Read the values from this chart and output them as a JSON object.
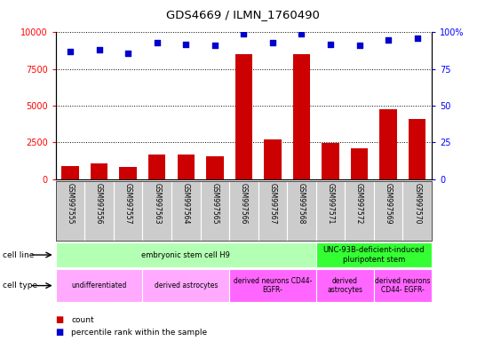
{
  "title": "GDS4669 / ILMN_1760490",
  "samples": [
    "GSM997555",
    "GSM997556",
    "GSM997557",
    "GSM997563",
    "GSM997564",
    "GSM997565",
    "GSM997566",
    "GSM997567",
    "GSM997568",
    "GSM997571",
    "GSM997572",
    "GSM997569",
    "GSM997570"
  ],
  "counts": [
    900,
    1050,
    800,
    1700,
    1700,
    1550,
    8500,
    2700,
    8500,
    2450,
    2100,
    4750,
    4100
  ],
  "percentiles": [
    87,
    88,
    86,
    93,
    92,
    91,
    99,
    93,
    99,
    92,
    91,
    95,
    96
  ],
  "bar_color": "#cc0000",
  "dot_color": "#0000cc",
  "ylim_left": [
    0,
    10000
  ],
  "ylim_right": [
    0,
    100
  ],
  "yticks_left": [
    0,
    2500,
    5000,
    7500,
    10000
  ],
  "yticks_right": [
    0,
    25,
    50,
    75,
    100
  ],
  "cell_line_groups": [
    {
      "label": "embryonic stem cell H9",
      "start": 0,
      "end": 9,
      "color": "#b3ffb3"
    },
    {
      "label": "UNC-93B-deficient-induced\npluripotent stem",
      "start": 9,
      "end": 13,
      "color": "#33ff33"
    }
  ],
  "cell_type_groups": [
    {
      "label": "undifferentiated",
      "start": 0,
      "end": 3,
      "color": "#ffaaff"
    },
    {
      "label": "derived astrocytes",
      "start": 3,
      "end": 6,
      "color": "#ffaaff"
    },
    {
      "label": "derived neurons CD44-\nEGFR-",
      "start": 6,
      "end": 9,
      "color": "#ff66ff"
    },
    {
      "label": "derived\nastrocytes",
      "start": 9,
      "end": 11,
      "color": "#ff66ff"
    },
    {
      "label": "derived neurons\nCD44- EGFR-",
      "start": 11,
      "end": 13,
      "color": "#ff66ff"
    }
  ],
  "background_color": "#ffffff",
  "tick_bg_color": "#cccccc"
}
